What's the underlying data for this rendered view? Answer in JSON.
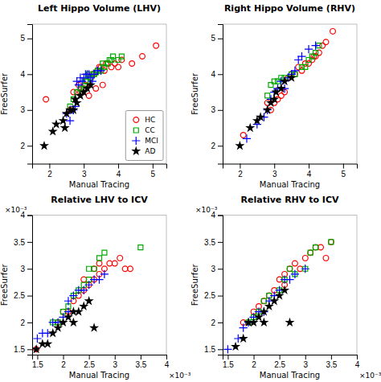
{
  "chart_data": [
    {
      "type": "scatter",
      "title": "Left Hippo Volume (LHV)",
      "xlabel": "Manual Tracing",
      "ylabel": "FreeSurfer",
      "xlim": [
        1.5,
        5.4
      ],
      "ylim": [
        1.5,
        5.4
      ],
      "xticks": [
        2,
        3,
        4,
        5
      ],
      "yticks": [
        2,
        3,
        4,
        5
      ],
      "legend": "lower right",
      "series": [
        {
          "name": "HC",
          "color": "#FF0000",
          "marker": "circle",
          "x": [
            1.9,
            2.6,
            2.7,
            2.8,
            2.85,
            2.9,
            3.0,
            3.05,
            3.1,
            3.15,
            3.2,
            3.25,
            3.3,
            3.35,
            3.4,
            3.45,
            3.5,
            3.55,
            3.6,
            3.65,
            3.7,
            3.8,
            3.9,
            4.0,
            4.1,
            4.4,
            4.7,
            5.1
          ],
          "values": [
            3.3,
            3.0,
            3.5,
            3.5,
            3.7,
            3.5,
            3.6,
            3.7,
            3.8,
            3.4,
            3.9,
            4.0,
            4.0,
            3.6,
            4.1,
            4.2,
            4.2,
            3.7,
            4.1,
            4.3,
            4.3,
            4.2,
            4.3,
            4.2,
            4.4,
            4.3,
            4.5,
            4.8
          ]
        },
        {
          "name": "CC",
          "color": "#00AA00",
          "marker": "square",
          "x": [
            2.6,
            2.7,
            2.8,
            2.9,
            3.0,
            3.05,
            3.1,
            3.15,
            3.2,
            3.3,
            3.35,
            3.4,
            3.5,
            3.55,
            3.6,
            3.7,
            3.75,
            3.8,
            3.85,
            4.0,
            4.1
          ],
          "values": [
            3.1,
            3.3,
            3.5,
            3.6,
            3.6,
            3.8,
            3.8,
            4.0,
            3.9,
            4.0,
            4.05,
            4.1,
            4.1,
            4.3,
            4.2,
            4.3,
            4.4,
            4.4,
            4.5,
            4.4,
            4.5
          ]
        },
        {
          "name": "MCI",
          "color": "#0000FF",
          "marker": "plus",
          "x": [
            2.5,
            2.6,
            2.7,
            2.75,
            2.8,
            2.85,
            2.9,
            2.95,
            3.0,
            3.05,
            3.1,
            3.15,
            3.2,
            3.25,
            3.3,
            3.4,
            3.5
          ],
          "values": [
            2.9,
            2.7,
            3.0,
            3.1,
            3.8,
            3.7,
            3.9,
            3.8,
            3.9,
            4.0,
            4.0,
            4.0,
            3.9,
            3.8,
            4.0,
            4.1,
            4.1
          ]
        },
        {
          "name": "AD",
          "color": "#000000",
          "marker": "star",
          "x": [
            1.85,
            2.1,
            2.2,
            2.4,
            2.45,
            2.5,
            2.6,
            2.7,
            2.75,
            2.8,
            2.9,
            3.0,
            3.1,
            3.2
          ],
          "values": [
            2.0,
            2.4,
            2.6,
            2.7,
            2.5,
            2.9,
            3.0,
            3.0,
            3.3,
            3.2,
            3.4,
            3.5,
            3.6,
            3.7
          ]
        }
      ]
    },
    {
      "type": "scatter",
      "title": "Right Hippo Volume (RHV)",
      "xlabel": "Manual Tracing",
      "ylabel": "FreeSurfer",
      "xlim": [
        1.5,
        5.4
      ],
      "ylim": [
        1.5,
        5.4
      ],
      "xticks": [
        2,
        3,
        4,
        5
      ],
      "yticks": [
        2,
        3,
        4,
        5
      ],
      "series": [
        {
          "name": "HC",
          "color": "#FF0000",
          "marker": "circle",
          "x": [
            2.1,
            2.8,
            2.9,
            3.0,
            3.1,
            3.2,
            3.3,
            3.4,
            3.5,
            3.6,
            3.7,
            3.8,
            3.9,
            4.0,
            4.1,
            4.15,
            4.2,
            4.3,
            4.4,
            4.5,
            4.7
          ],
          "values": [
            2.3,
            3.2,
            3.0,
            3.2,
            3.3,
            3.4,
            3.5,
            3.9,
            4.0,
            4.0,
            4.2,
            4.1,
            4.3,
            4.3,
            4.4,
            4.5,
            4.5,
            4.6,
            4.8,
            4.9,
            5.2
          ]
        },
        {
          "name": "CC",
          "color": "#00AA00",
          "marker": "square",
          "x": [
            2.8,
            2.9,
            3.0,
            3.1,
            3.2,
            3.3,
            3.5,
            3.6,
            3.8,
            3.9,
            4.0,
            4.1,
            4.2,
            4.3
          ],
          "values": [
            3.4,
            3.7,
            3.8,
            3.8,
            3.9,
            3.9,
            4.0,
            4.0,
            4.2,
            4.2,
            4.4,
            4.5,
            4.6,
            4.8
          ]
        },
        {
          "name": "MCI",
          "color": "#0000FF",
          "marker": "plus",
          "x": [
            2.2,
            2.5,
            2.7,
            2.8,
            2.9,
            3.0,
            3.1,
            3.2,
            3.3,
            3.4,
            3.5,
            3.6,
            3.7,
            3.8,
            4.0,
            4.2
          ],
          "values": [
            2.2,
            2.6,
            2.8,
            3.0,
            3.3,
            3.5,
            3.6,
            3.8,
            3.6,
            3.9,
            4.0,
            4.1,
            4.4,
            4.5,
            4.7,
            4.8
          ]
        },
        {
          "name": "AD",
          "color": "#000000",
          "marker": "star",
          "x": [
            2.0,
            2.3,
            2.5,
            2.6,
            2.8,
            2.9,
            3.0,
            3.05,
            3.2,
            3.3,
            3.5
          ],
          "values": [
            2.0,
            2.5,
            2.7,
            2.8,
            3.0,
            3.2,
            3.3,
            3.5,
            3.6,
            3.8,
            3.9
          ]
        }
      ]
    },
    {
      "type": "scatter",
      "title": "Relative LHV to ICV",
      "xlabel": "Manual Tracing",
      "ylabel": "FreeSurfer",
      "annotations": [
        "×10⁻³",
        "×10⁻³"
      ],
      "xlim": [
        0.0014,
        0.004
      ],
      "ylim": [
        0.0014,
        0.004
      ],
      "xticks": [
        {
          "value": 0.0015,
          "label": "1.5"
        },
        {
          "value": 0.002,
          "label": "2"
        },
        {
          "value": 0.0025,
          "label": "2.5"
        },
        {
          "value": 0.003,
          "label": "3"
        },
        {
          "value": 0.0035,
          "label": "3.5"
        },
        {
          "value": 0.004,
          "label": "4"
        }
      ],
      "yticks": [
        {
          "value": 0.0015,
          "label": "1.5"
        },
        {
          "value": 0.002,
          "label": "2"
        },
        {
          "value": 0.0025,
          "label": "2.5"
        },
        {
          "value": 0.003,
          "label": "3"
        },
        {
          "value": 0.0035,
          "label": "3.5"
        },
        {
          "value": 0.004,
          "label": "4"
        }
      ],
      "series": [
        {
          "name": "HC",
          "color": "#FF0000",
          "marker": "circle",
          "x": [
            0.00148,
            0.0019,
            0.002,
            0.0021,
            0.0022,
            0.0023,
            0.0024,
            0.0024,
            0.0025,
            0.0026,
            0.0026,
            0.0027,
            0.0027,
            0.0028,
            0.0029,
            0.003,
            0.0031,
            0.0032,
            0.0033
          ],
          "values": [
            0.0015,
            0.002,
            0.0022,
            0.0022,
            0.0024,
            0.0025,
            0.0026,
            0.0028,
            0.0027,
            0.0028,
            0.003,
            0.0029,
            0.0031,
            0.003,
            0.0031,
            0.0031,
            0.0032,
            0.003,
            0.003
          ]
        },
        {
          "name": "CC",
          "color": "#00AA00",
          "marker": "square",
          "x": [
            0.0018,
            0.0019,
            0.002,
            0.0021,
            0.0022,
            0.0023,
            0.0024,
            0.0025,
            0.0025,
            0.0026,
            0.0027,
            0.0028,
            0.0035
          ],
          "values": [
            0.002,
            0.002,
            0.0022,
            0.0023,
            0.0025,
            0.0026,
            0.0027,
            0.0028,
            0.003,
            0.003,
            0.0032,
            0.0033,
            0.0034
          ]
        },
        {
          "name": "MCI",
          "color": "#0000FF",
          "marker": "plus",
          "x": [
            0.0015,
            0.0016,
            0.0017,
            0.0018,
            0.0019,
            0.002,
            0.0021,
            0.0021,
            0.0022,
            0.0023,
            0.0024,
            0.0025,
            0.0026,
            0.0027,
            0.0028
          ],
          "values": [
            0.0017,
            0.0018,
            0.0018,
            0.002,
            0.002,
            0.0021,
            0.0022,
            0.0024,
            0.0025,
            0.0026,
            0.0026,
            0.0027,
            0.0028,
            0.0028,
            0.0029
          ]
        },
        {
          "name": "AD",
          "color": "#000000",
          "marker": "star",
          "x": [
            0.00148,
            0.0016,
            0.0017,
            0.0018,
            0.0019,
            0.002,
            0.0021,
            0.0022,
            0.0022,
            0.0023,
            0.0024,
            0.0025,
            0.0026
          ],
          "values": [
            0.0015,
            0.0016,
            0.0016,
            0.0018,
            0.0019,
            0.002,
            0.0021,
            0.0022,
            0.002,
            0.0022,
            0.0023,
            0.0024,
            0.0019
          ]
        }
      ]
    },
    {
      "type": "scatter",
      "title": "Relative RHV to ICV",
      "xlabel": "Manual Tracing",
      "ylabel": "FreeSurfer",
      "annotations": [
        "×10⁻³",
        "×10⁻³"
      ],
      "xlim": [
        0.0014,
        0.004
      ],
      "ylim": [
        0.0014,
        0.004
      ],
      "xticks": [
        {
          "value": 0.0015,
          "label": "1.5"
        },
        {
          "value": 0.002,
          "label": "2"
        },
        {
          "value": 0.0025,
          "label": "2.5"
        },
        {
          "value": 0.003,
          "label": "3"
        },
        {
          "value": 0.0035,
          "label": "3.5"
        },
        {
          "value": 0.004,
          "label": "4"
        }
      ],
      "yticks": [
        {
          "value": 0.0015,
          "label": "1.5"
        },
        {
          "value": 0.002,
          "label": "2"
        },
        {
          "value": 0.0025,
          "label": "2.5"
        },
        {
          "value": 0.003,
          "label": "3"
        },
        {
          "value": 0.0035,
          "label": "3.5"
        },
        {
          "value": 0.004,
          "label": "4"
        }
      ],
      "series": [
        {
          "name": "HC",
          "color": "#FF0000",
          "marker": "circle",
          "x": [
            0.0018,
            0.002,
            0.0021,
            0.0022,
            0.0023,
            0.0024,
            0.0025,
            0.0026,
            0.0026,
            0.0027,
            0.0028,
            0.0029,
            0.003,
            0.0031,
            0.0032,
            0.0033,
            0.0034,
            0.0035
          ],
          "values": [
            0.002,
            0.0022,
            0.0023,
            0.0024,
            0.0025,
            0.0026,
            0.0028,
            0.0029,
            0.0027,
            0.003,
            0.0031,
            0.003,
            0.0032,
            0.0033,
            0.0034,
            0.0034,
            0.0032,
            0.0035
          ]
        },
        {
          "name": "CC",
          "color": "#00AA00",
          "marker": "square",
          "x": [
            0.0019,
            0.002,
            0.0021,
            0.0022,
            0.0023,
            0.0025,
            0.0026,
            0.0027,
            0.0028,
            0.003,
            0.0031,
            0.0032,
            0.0035
          ],
          "values": [
            0.002,
            0.0021,
            0.0022,
            0.0024,
            0.0025,
            0.0026,
            0.0028,
            0.003,
            0.0029,
            0.003,
            0.0033,
            0.0034,
            0.0035
          ]
        },
        {
          "name": "MCI",
          "color": "#0000FF",
          "marker": "plus",
          "x": [
            0.0015,
            0.0017,
            0.0018,
            0.0019,
            0.002,
            0.0021,
            0.0022,
            0.0023,
            0.0024,
            0.0025,
            0.0026,
            0.0027,
            0.0028,
            0.003
          ],
          "values": [
            0.0015,
            0.0017,
            0.0019,
            0.002,
            0.0021,
            0.0022,
            0.0022,
            0.0024,
            0.0025,
            0.0026,
            0.0028,
            0.0028,
            0.0029,
            0.003
          ]
        },
        {
          "name": "AD",
          "color": "#000000",
          "marker": "star",
          "x": [
            0.00165,
            0.0018,
            0.0019,
            0.002,
            0.0021,
            0.0022,
            0.0022,
            0.0023,
            0.0024,
            0.0025,
            0.0026,
            0.0027
          ],
          "values": [
            0.00155,
            0.0017,
            0.002,
            0.002,
            0.0021,
            0.0022,
            0.002,
            0.0023,
            0.0024,
            0.0025,
            0.0026,
            0.002
          ]
        }
      ]
    }
  ]
}
